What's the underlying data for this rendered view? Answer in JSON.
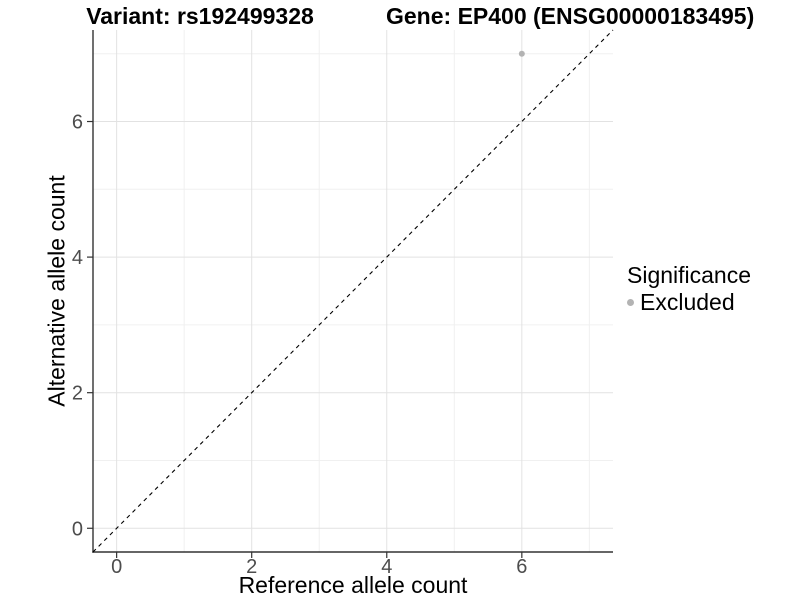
{
  "chart_data": {
    "type": "scatter",
    "panel_titles": [
      "Variant: rs192499328",
      "Gene: EP400 (ENSG00000183495)"
    ],
    "xlabel": "Reference allele count",
    "ylabel": "Alternative allele count",
    "xlim": [
      -0.35,
      7.35
    ],
    "ylim": [
      -0.35,
      7.35
    ],
    "x_major_ticks": [
      0,
      2,
      4,
      6
    ],
    "y_major_ticks": [
      0,
      2,
      4,
      6
    ],
    "x_minor_ticks": [
      1,
      3,
      5,
      7
    ],
    "y_minor_ticks": [
      1,
      3,
      5,
      7
    ],
    "grid": true,
    "reference_line": {
      "type": "identity",
      "slope": 1,
      "intercept": 0,
      "style": "dashed",
      "color": "#000000"
    },
    "series": [
      {
        "name": "Excluded",
        "color": "#b3b3b3",
        "points": [
          [
            6,
            7
          ]
        ]
      }
    ],
    "legend": {
      "title": "Significance",
      "position": "right",
      "items": [
        {
          "label": "Excluded",
          "color": "#b3b3b3"
        }
      ]
    },
    "colors": {
      "grid_major": "#e2e2e2",
      "grid_minor": "#f0f0f0",
      "axis": "#333333",
      "tick_label": "#4d4d4d"
    }
  }
}
